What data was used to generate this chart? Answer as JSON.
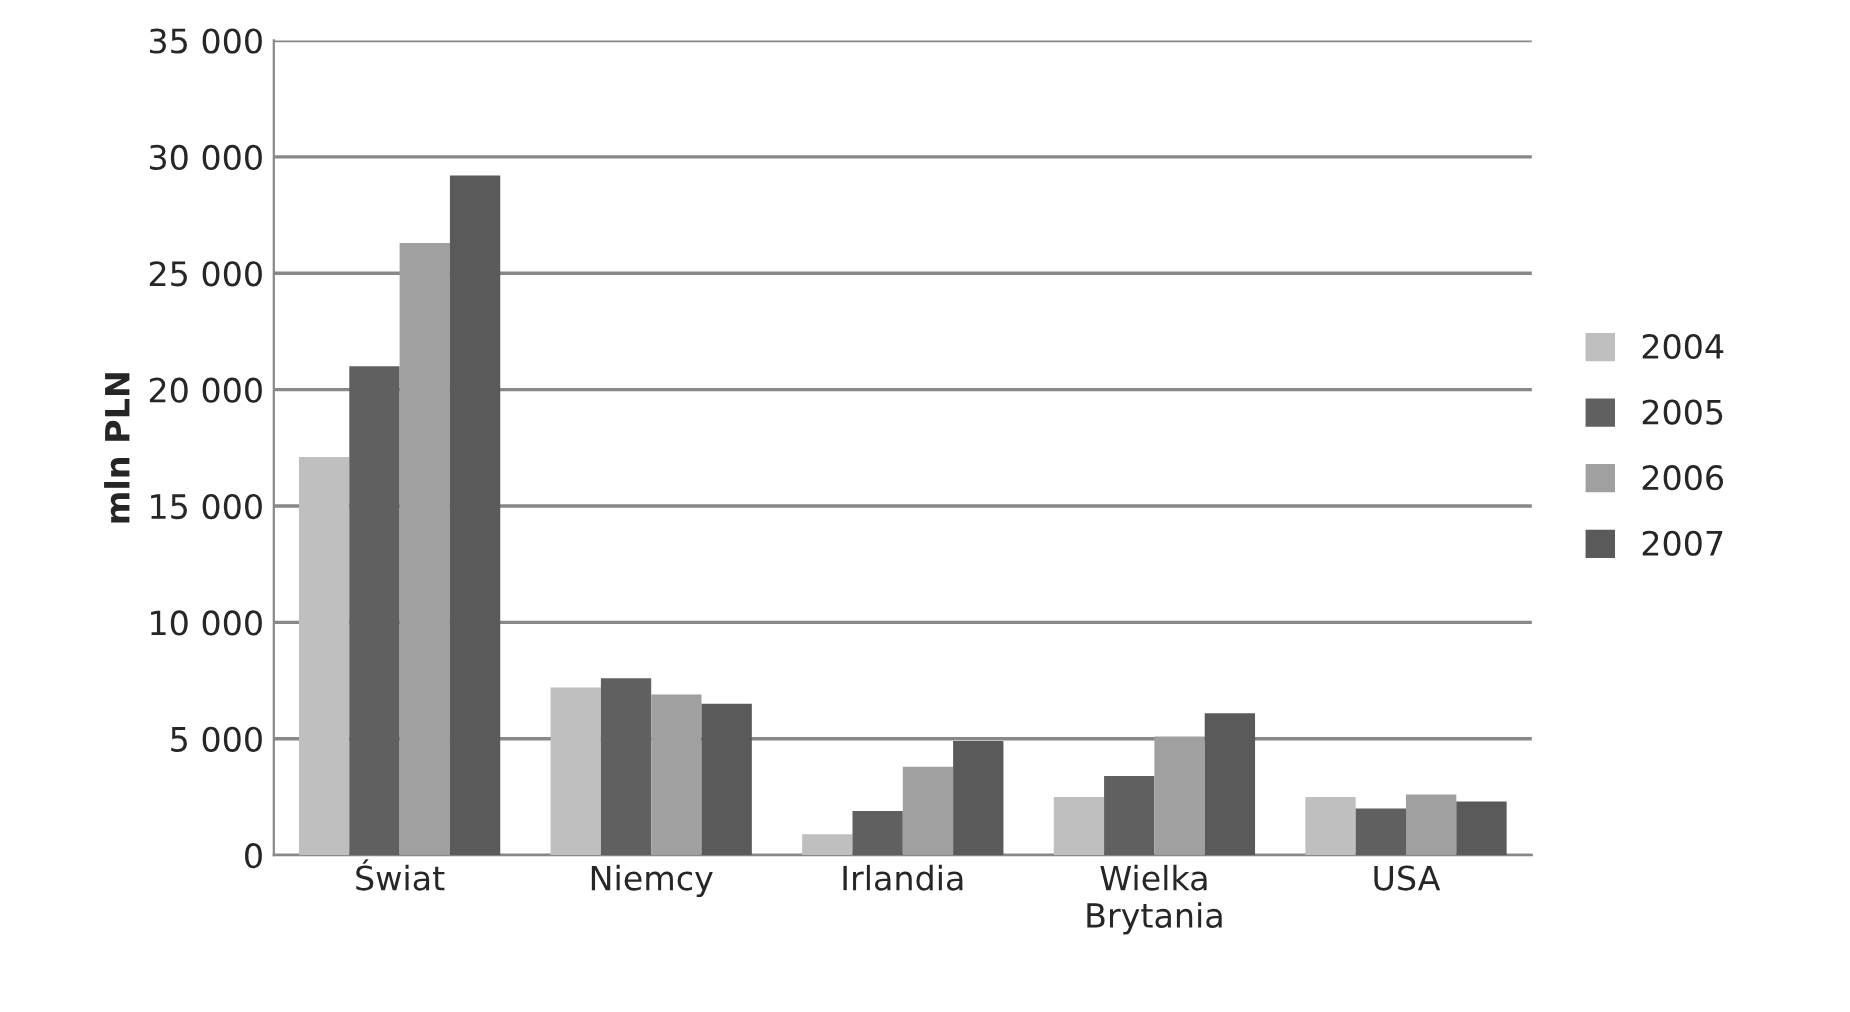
{
  "chart_data": {
    "type": "bar",
    "ylabel": "mln PLN",
    "categories": [
      "Świat",
      "Niemcy",
      "Irlandia",
      "Wielka\nBrytania",
      "USA"
    ],
    "series": [
      {
        "name": "2004",
        "color": "#bfbfbf",
        "values": [
          17100,
          7200,
          900,
          2500,
          2500
        ]
      },
      {
        "name": "2005",
        "color": "#606060",
        "values": [
          21000,
          7600,
          1900,
          3400,
          2000
        ]
      },
      {
        "name": "2006",
        "color": "#a0a0a0",
        "values": [
          26300,
          6900,
          3800,
          5100,
          2600
        ]
      },
      {
        "name": "2007",
        "color": "#5a5a5a",
        "values": [
          29200,
          6500,
          4900,
          6100,
          2300
        ]
      }
    ],
    "ylim": [
      0,
      35000
    ],
    "yticks": [
      {
        "value": 0,
        "label": "0"
      },
      {
        "value": 5000,
        "label": "5 000"
      },
      {
        "value": 10000,
        "label": "10 000"
      },
      {
        "value": 15000,
        "label": "15 000"
      },
      {
        "value": 20000,
        "label": "20 000"
      },
      {
        "value": 25000,
        "label": "25 000"
      },
      {
        "value": 30000,
        "label": "30 000"
      },
      {
        "value": 35000,
        "label": "35 000"
      }
    ],
    "grid": "y",
    "legend": "right"
  }
}
